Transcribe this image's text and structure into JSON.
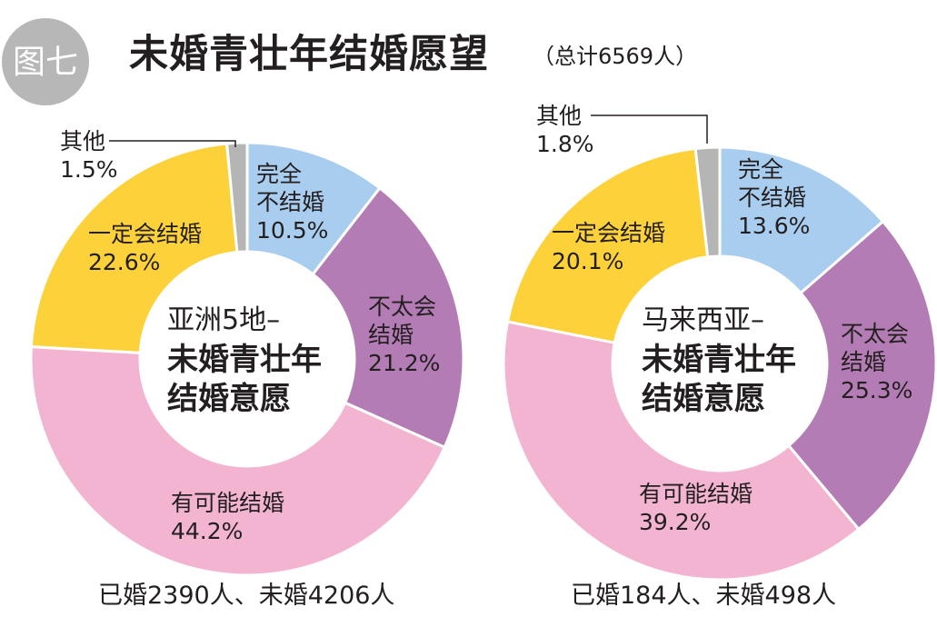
{
  "header": {
    "figure_label": "图七",
    "title": "未婚青壮年结婚愿望",
    "subtitle": "（总计6569人）"
  },
  "colors": {
    "完全不结婚": "#a9cdee",
    "不太会结婚": "#b47cb4",
    "有可能结婚": "#f2b4d1",
    "一定会结婚": "#fdd13a",
    "其他": "#b5b5b6"
  },
  "chart_data": [
    {
      "type": "pie",
      "donut": true,
      "center_text": [
        "亚洲5地–",
        "未婚青壮年",
        "结婚意愿"
      ],
      "caption": "已婚2390人、未婚4206人",
      "slices": [
        {
          "label": "完全不结婚",
          "value": 10.5,
          "text": [
            "完全",
            "不结婚",
            "10.5%"
          ]
        },
        {
          "label": "不太会结婚",
          "value": 21.2,
          "text": [
            "不太会",
            "结婚",
            "21.2%"
          ]
        },
        {
          "label": "有可能结婚",
          "value": 44.2,
          "text": [
            "有可能结婚",
            "44.2%"
          ]
        },
        {
          "label": "一定会结婚",
          "value": 22.6,
          "text": [
            "一定会结婚",
            "22.6%"
          ]
        },
        {
          "label": "其他",
          "value": 1.5,
          "text": [
            "其他",
            "1.5%"
          ]
        }
      ]
    },
    {
      "type": "pie",
      "donut": true,
      "center_text": [
        "马来西亚–",
        "未婚青壮年",
        "结婚意愿"
      ],
      "caption": "已婚184人、未婚498人",
      "slices": [
        {
          "label": "完全不结婚",
          "value": 13.6,
          "text": [
            "完全",
            "不结婚",
            "13.6%"
          ]
        },
        {
          "label": "不太会结婚",
          "value": 25.3,
          "text": [
            "不太会",
            "结婚",
            "25.3%"
          ]
        },
        {
          "label": "有可能结婚",
          "value": 39.2,
          "text": [
            "有可能结婚",
            "39.2%"
          ]
        },
        {
          "label": "一定会结婚",
          "value": 20.1,
          "text": [
            "一定会结婚",
            "20.1%"
          ]
        },
        {
          "label": "其他",
          "value": 1.8,
          "text": [
            "其他",
            "1.8%"
          ]
        }
      ]
    }
  ]
}
